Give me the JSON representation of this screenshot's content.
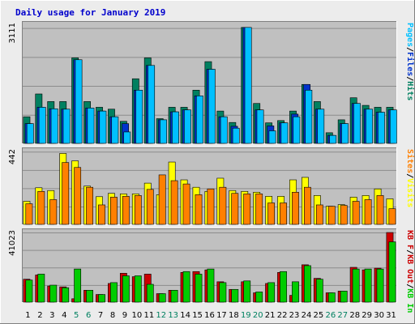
{
  "chart_data": {
    "type": "bar",
    "title": "Daily usage for January 2019",
    "colors": {
      "background": "#ececec",
      "plot_bg": "#c0c0c0",
      "grid": "#8c8c8c",
      "title": "#0000cc",
      "pages": "#00c0ff",
      "files": "#0033cc",
      "hits": "#008060",
      "visits": "#ffff00",
      "sites": "#ff8000",
      "kb_in": "#00cc00",
      "kb_out": "#cc0000",
      "weekend": "#008060",
      "weekday": "#000000"
    },
    "days": [
      "1",
      "2",
      "3",
      "4",
      "5",
      "6",
      "7",
      "8",
      "9",
      "10",
      "11",
      "12",
      "13",
      "14",
      "15",
      "16",
      "17",
      "18",
      "19",
      "20",
      "21",
      "22",
      "23",
      "24",
      "25",
      "26",
      "27",
      "28",
      "29",
      "30",
      "31"
    ],
    "weekend_days": [
      "5",
      "6",
      "12",
      "13",
      "19",
      "20",
      "26",
      "27"
    ],
    "panels": [
      {
        "name": "hits-files-pages",
        "ymax": 3111,
        "ymax_label": "3111",
        "legend": [
          {
            "text": "Hits",
            "color": "#008060"
          },
          {
            "text": "Files",
            "color": "#0033cc"
          },
          {
            "text": "Pages",
            "color": "#00c0ff"
          }
        ],
        "series": [
          {
            "name": "Hits",
            "values": [
              700,
              1300,
              1100,
              1100,
              2250,
              1100,
              950,
              900,
              580,
              1700,
              2250,
              650,
              950,
              950,
              1400,
              2150,
              850,
              550,
              3050,
              1050,
              540,
              600,
              850,
              1550,
              1100,
              280,
              620,
              1200,
              1000,
              950,
              950
            ]
          },
          {
            "name": "Files",
            "values": [
              520,
              950,
              910,
              900,
              2200,
              930,
              850,
              700,
              520,
              1400,
              2050,
              620,
              830,
              880,
              1250,
              1950,
              700,
              450,
              3050,
              880,
              460,
              540,
              770,
              1550,
              900,
              210,
              520,
              1050,
              900,
              820,
              880
            ]
          },
          {
            "name": "Pages",
            "values": [
              520,
              950,
              910,
              900,
              2200,
              930,
              850,
              700,
              300,
              1400,
              2050,
              620,
              830,
              880,
              1250,
              1950,
              700,
              400,
              3050,
              880,
              330,
              540,
              700,
              1400,
              900,
              210,
              520,
              1050,
              900,
              820,
              880
            ]
          }
        ]
      },
      {
        "name": "visits-sites",
        "ymax": 442,
        "ymax_label": "442",
        "legend": [
          {
            "text": "Visits",
            "color": "#ffff00"
          },
          {
            "text": "Sites",
            "color": "#ff8000"
          }
        ],
        "series": [
          {
            "name": "Visits",
            "values": [
              140,
              222,
              205,
              430,
              385,
              232,
              168,
              188,
              185,
              185,
              250,
              180,
              378,
              270,
              225,
              200,
              280,
              205,
              200,
              195,
              170,
              170,
              270,
              285,
              175,
              110,
              120,
              165,
              175,
              215,
              155
            ]
          },
          {
            "name": "Sites",
            "values": [
              125,
              200,
              150,
              375,
              345,
              225,
              118,
              165,
              170,
              175,
              212,
              300,
              265,
              245,
              180,
              215,
              225,
              188,
              185,
              185,
              130,
              130,
              195,
              225,
              118,
              110,
              115,
              140,
              150,
              175,
              95
            ]
          }
        ]
      },
      {
        "name": "kbin-kbout",
        "ymax": 41023,
        "ymax_label": "41023",
        "legend": [
          {
            "text": "KB In",
            "color": "#00cc00"
          },
          {
            "text": "KB Out",
            "color": "#cc0000"
          },
          {
            "text": "KB F",
            "color": "#cc0000"
          }
        ],
        "series": [
          {
            "name": "KB Out",
            "values": [
              13500,
              16000,
              9500,
              9000,
              2000,
              7000,
              4500,
              11000,
              17000,
              15000,
              16500,
              5000,
              7000,
              17500,
              18000,
              19000,
              12000,
              7500,
              12000,
              5500,
              11000,
              17500,
              4000,
              22000,
              14000,
              5500,
              6500,
              20500,
              19000,
              20000,
              41000
            ]
          },
          {
            "name": "KB In",
            "values": [
              13000,
              16500,
              10000,
              8500,
              19500,
              7000,
              4500,
              11500,
              15500,
              15500,
              10500,
              5000,
              7000,
              18000,
              16500,
              19500,
              11500,
              7500,
              12500,
              6000,
              11500,
              18000,
              12000,
              21500,
              13500,
              5500,
              6500,
              19500,
              19500,
              19500,
              35500
            ]
          }
        ]
      }
    ]
  }
}
